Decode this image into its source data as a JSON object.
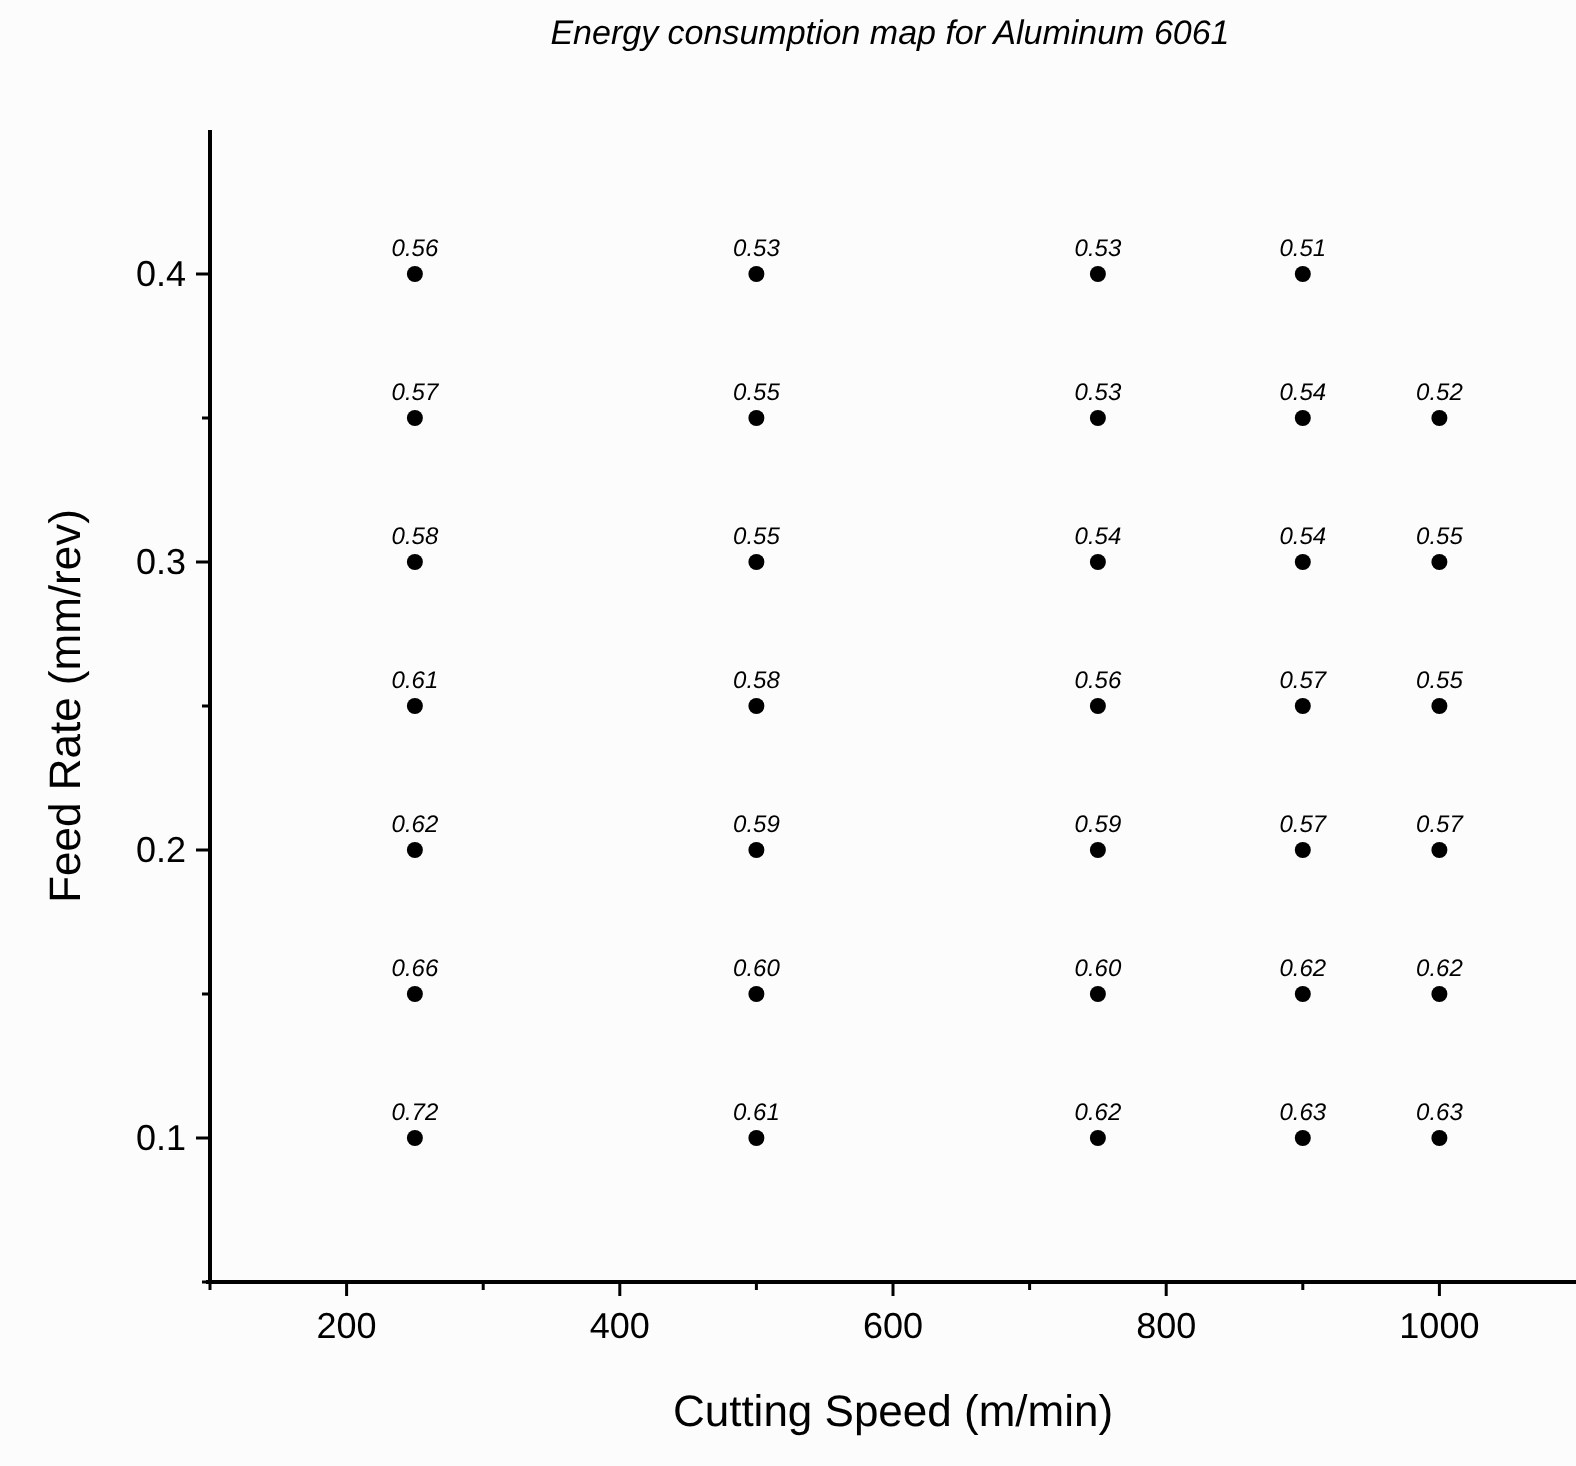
{
  "chart_data": {
    "type": "scatter",
    "title": "Energy consumption map for Aluminum 6061",
    "xlabel": "Cutting Speed (m/min)",
    "ylabel": "Feed Rate (mm/rev)",
    "series": [
      {
        "color": "#000000",
        "x": [
          250,
          250,
          250,
          250,
          250,
          250,
          250,
          500,
          500,
          500,
          500,
          500,
          500,
          500,
          750,
          750,
          750,
          750,
          750,
          750,
          750,
          900,
          900,
          900,
          900,
          900,
          900,
          900,
          1000,
          1000,
          1000,
          1000,
          1000,
          1000
        ],
        "values": [
          0.4,
          0.35,
          0.3,
          0.25,
          0.2,
          0.15,
          0.1,
          0.4,
          0.35,
          0.3,
          0.25,
          0.2,
          0.15,
          0.1,
          0.4,
          0.35,
          0.3,
          0.25,
          0.2,
          0.15,
          0.1,
          0.4,
          0.35,
          0.3,
          0.25,
          0.2,
          0.15,
          0.1,
          0.35,
          0.3,
          0.25,
          0.2,
          0.15,
          0.1
        ]
      }
    ],
    "annotations": [
      {
        "text": "0.56",
        "x": 250,
        "y": 0.4
      },
      {
        "text": "0.57",
        "x": 250,
        "y": 0.35
      },
      {
        "text": "0.58",
        "x": 250,
        "y": 0.3
      },
      {
        "text": "0.61",
        "x": 250,
        "y": 0.25
      },
      {
        "text": "0.62",
        "x": 250,
        "y": 0.2
      },
      {
        "text": "0.66",
        "x": 250,
        "y": 0.15
      },
      {
        "text": "0.72",
        "x": 250,
        "y": 0.1
      },
      {
        "text": "0.53",
        "x": 500,
        "y": 0.4
      },
      {
        "text": "0.55",
        "x": 500,
        "y": 0.35
      },
      {
        "text": "0.55",
        "x": 500,
        "y": 0.3
      },
      {
        "text": "0.58",
        "x": 500,
        "y": 0.25
      },
      {
        "text": "0.59",
        "x": 500,
        "y": 0.2
      },
      {
        "text": "0.60",
        "x": 500,
        "y": 0.15
      },
      {
        "text": "0.61",
        "x": 500,
        "y": 0.1
      },
      {
        "text": "0.53",
        "x": 750,
        "y": 0.4
      },
      {
        "text": "0.53",
        "x": 750,
        "y": 0.35
      },
      {
        "text": "0.54",
        "x": 750,
        "y": 0.3
      },
      {
        "text": "0.56",
        "x": 750,
        "y": 0.25
      },
      {
        "text": "0.59",
        "x": 750,
        "y": 0.2
      },
      {
        "text": "0.60",
        "x": 750,
        "y": 0.15
      },
      {
        "text": "0.62",
        "x": 750,
        "y": 0.1
      },
      {
        "text": "0.51",
        "x": 900,
        "y": 0.4
      },
      {
        "text": "0.54",
        "x": 900,
        "y": 0.35
      },
      {
        "text": "0.54",
        "x": 900,
        "y": 0.3
      },
      {
        "text": "0.57",
        "x": 900,
        "y": 0.25
      },
      {
        "text": "0.57",
        "x": 900,
        "y": 0.2
      },
      {
        "text": "0.62",
        "x": 900,
        "y": 0.15
      },
      {
        "text": "0.63",
        "x": 900,
        "y": 0.1
      },
      {
        "text": "0.52",
        "x": 1000,
        "y": 0.35
      },
      {
        "text": "0.55",
        "x": 1000,
        "y": 0.3
      },
      {
        "text": "0.55",
        "x": 1000,
        "y": 0.25
      },
      {
        "text": "0.57",
        "x": 1000,
        "y": 0.2
      },
      {
        "text": "0.62",
        "x": 1000,
        "y": 0.15
      },
      {
        "text": "0.63",
        "x": 1000,
        "y": 0.1
      }
    ],
    "xlim": [
      100,
      1100
    ],
    "xticks": [
      {
        "value": 100,
        "label": null
      },
      200,
      {
        "value": 300,
        "label": null
      },
      400,
      {
        "value": 500,
        "label": null
      },
      600,
      {
        "value": 700,
        "label": null
      },
      800,
      {
        "value": 900,
        "label": null
      },
      1000
    ],
    "ylim": [
      0.05,
      0.45
    ],
    "yticks": [
      {
        "value": 0.05,
        "label": null
      },
      0.1,
      {
        "value": 0.15,
        "label": null
      },
      0.2,
      {
        "value": 0.25,
        "label": null
      },
      0.3,
      {
        "value": 0.35,
        "label": null
      },
      0.4
    ],
    "marker": "circle",
    "grid": false
  }
}
